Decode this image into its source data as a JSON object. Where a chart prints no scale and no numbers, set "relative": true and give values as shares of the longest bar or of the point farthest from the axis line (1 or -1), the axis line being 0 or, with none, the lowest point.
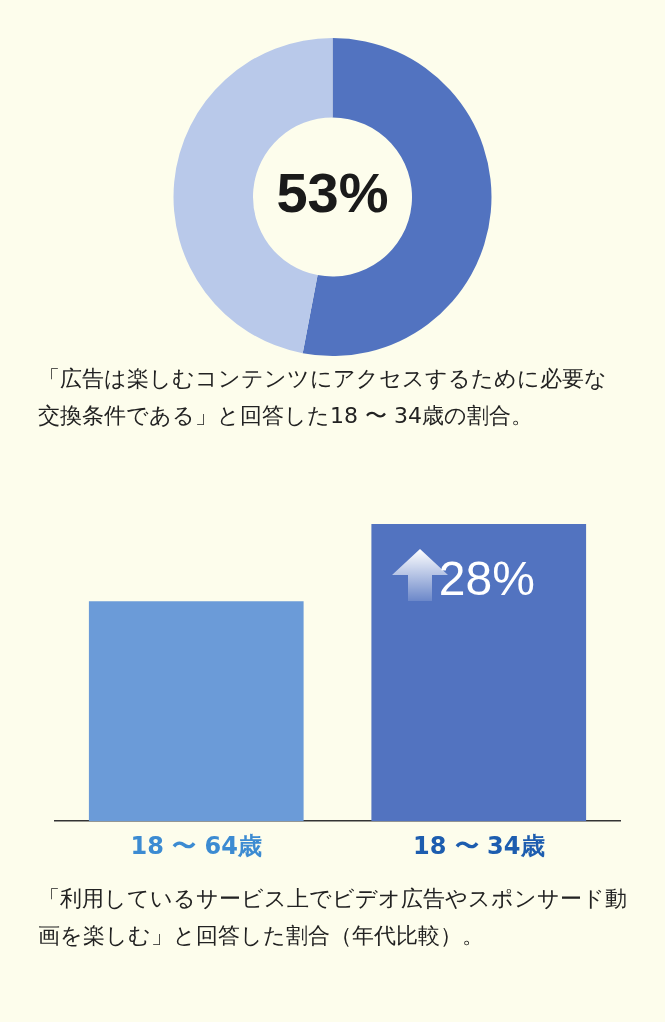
{
  "chart_data": [
    {
      "type": "donut",
      "categories": [
        null,
        null
      ],
      "values": [
        53,
        47
      ],
      "colors": [
        "#5273c0",
        "#b9c9ea"
      ],
      "value_labels": [
        "53%",
        null
      ],
      "annotations": [
        "「広告は楽しむコンテンツにアクセスするために必要な交換条件である」と回答した18 〜 34歳の割合。"
      ]
    },
    {
      "type": "bar",
      "relative": true,
      "categories": [
        "18 〜 64歳",
        "18 〜 34歳"
      ],
      "series": [
        {
          "colors": [
            "#6b9bd8",
            "#5273c0"
          ],
          "values": [
            0.74,
            1
          ]
        }
      ],
      "annotations": [
        "28%",
        "「利用しているサービス上でビデオ広告やスポンサード動画を楽しむ」と回答した割合（年代比較）。"
      ]
    }
  ]
}
